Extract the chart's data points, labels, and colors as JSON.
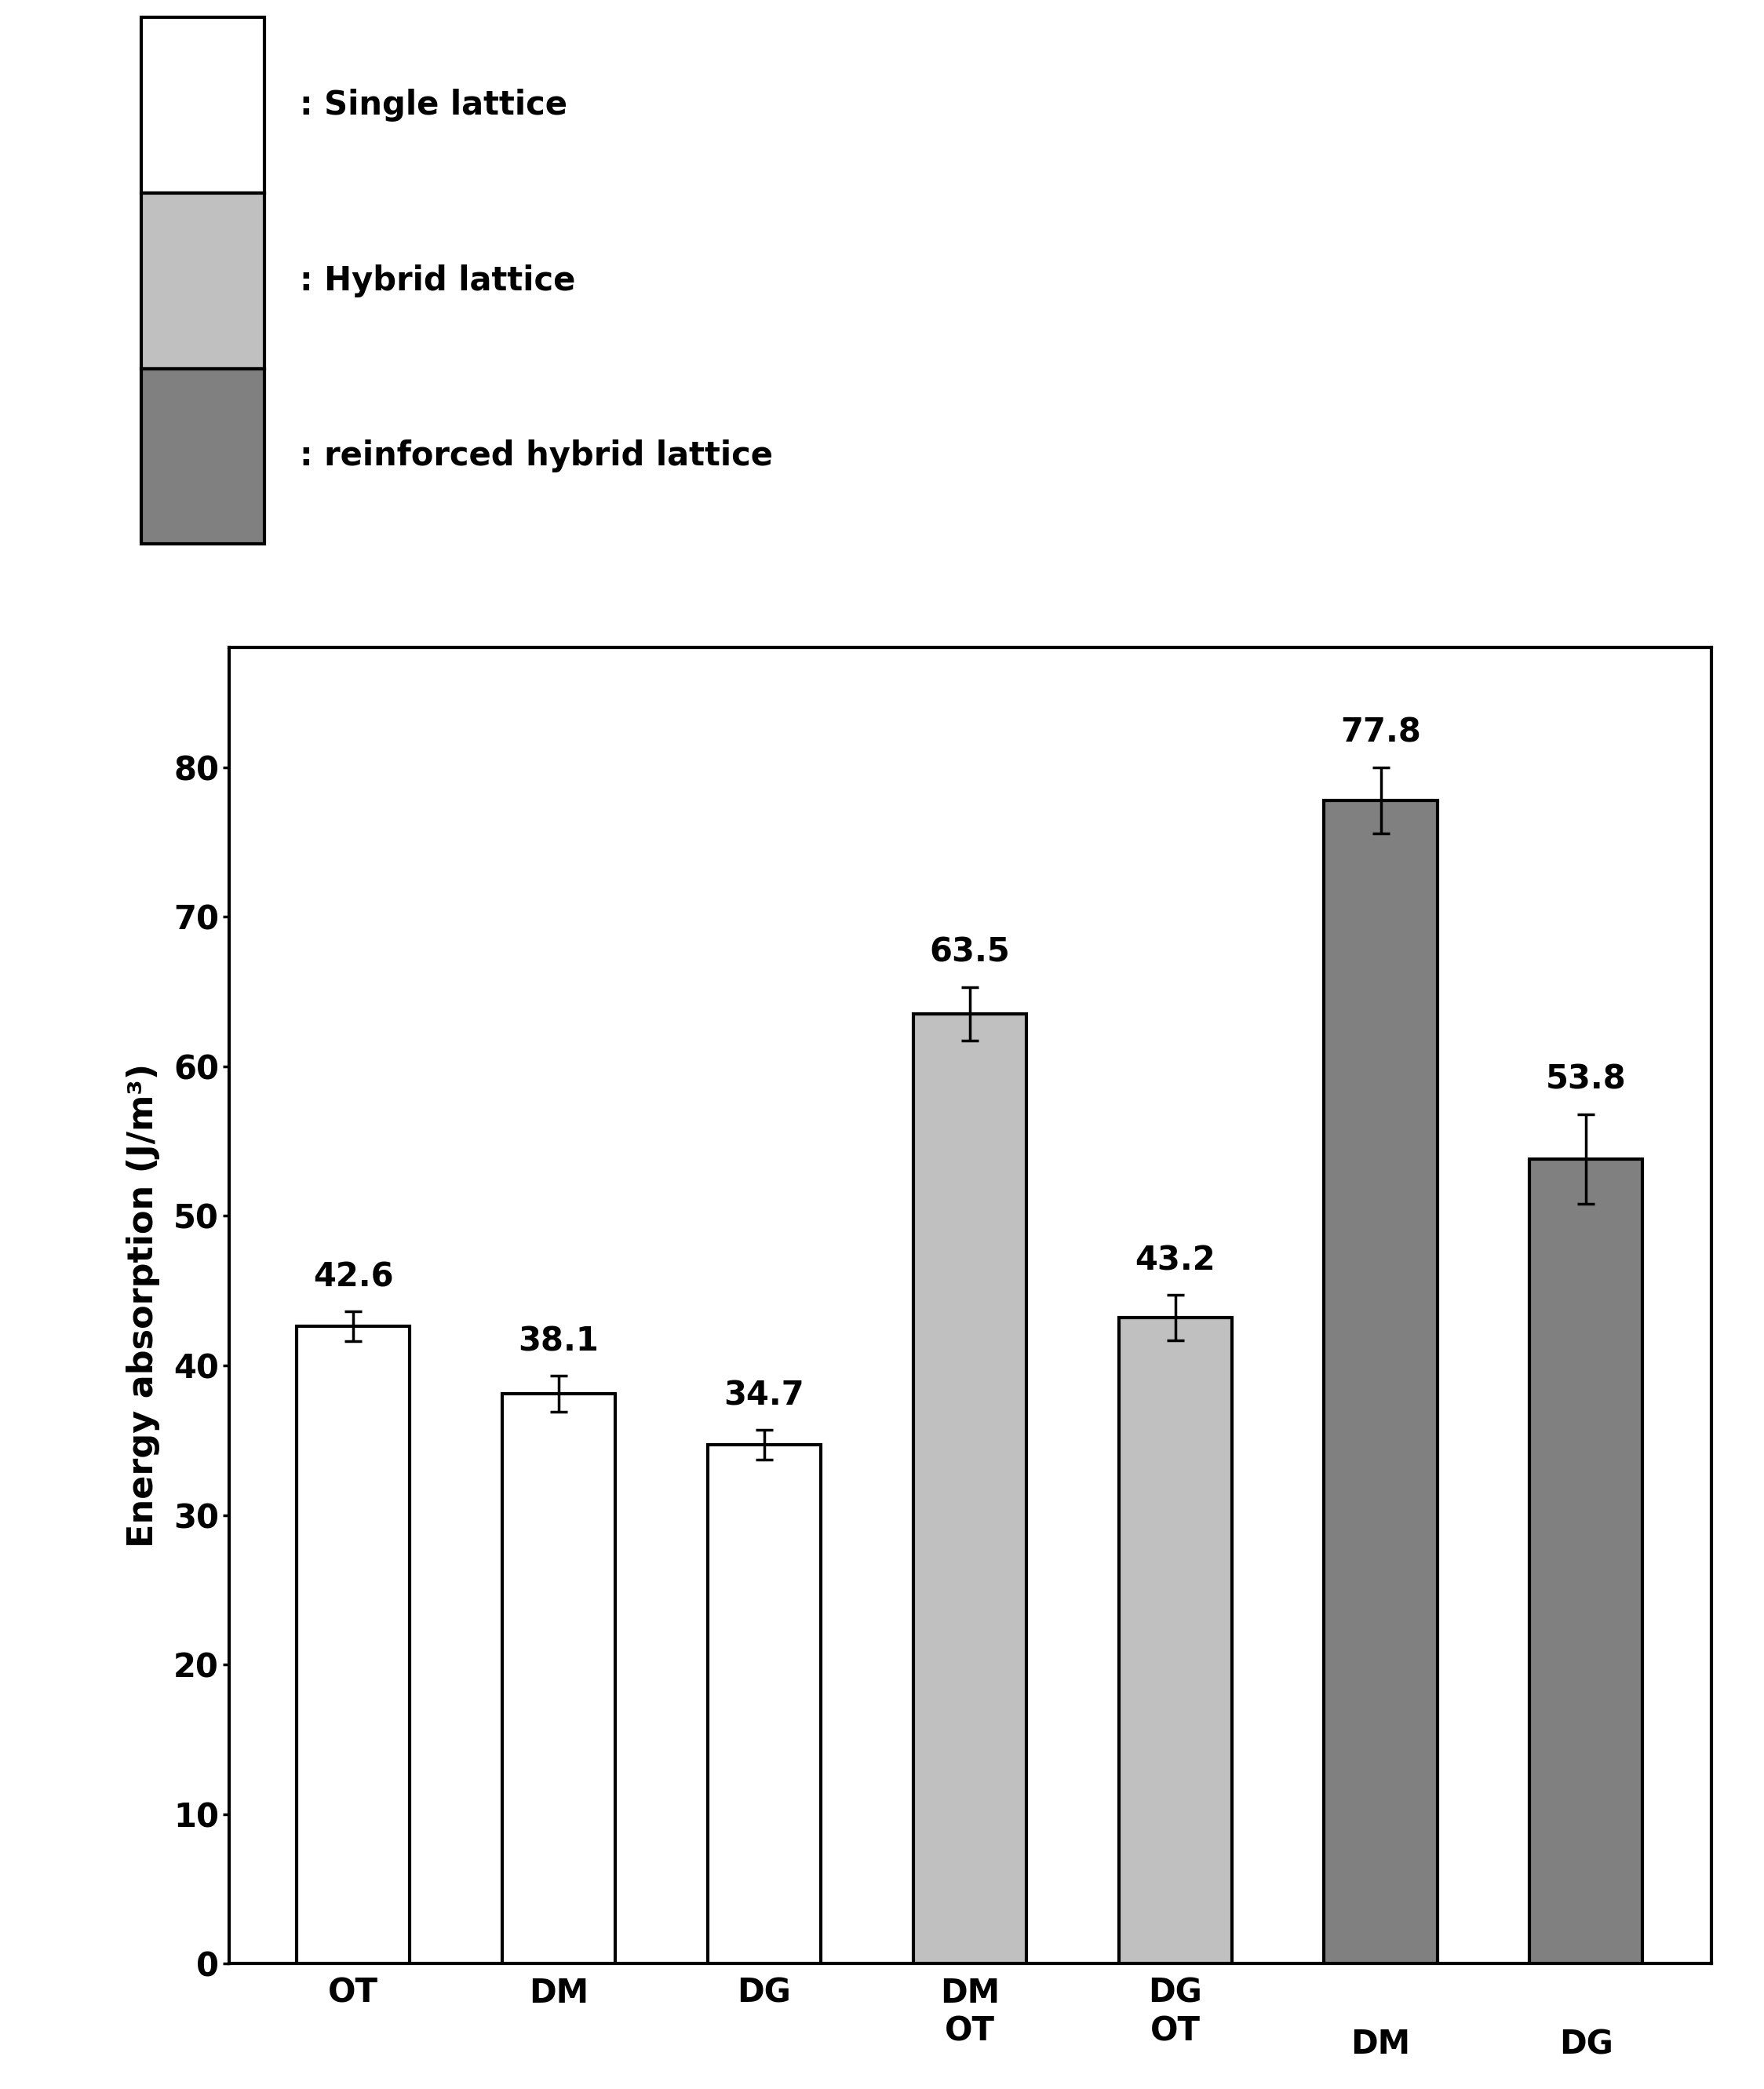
{
  "values": [
    42.6,
    38.1,
    34.7,
    63.5,
    43.2,
    77.8,
    53.8
  ],
  "errors": [
    1.0,
    1.2,
    1.0,
    1.8,
    1.5,
    2.2,
    3.0
  ],
  "bar_colors": [
    "#ffffff",
    "#ffffff",
    "#ffffff",
    "#c0c0c0",
    "#c0c0c0",
    "#808080",
    "#808080"
  ],
  "bar_edgecolor": "#000000",
  "bar_linewidth": 3.0,
  "error_capsize": 8,
  "error_color": "#000000",
  "error_linewidth": 2.5,
  "ylabel": "Energy absorption (J/m³)",
  "ylim": [
    0,
    88
  ],
  "yticks": [
    0,
    10,
    20,
    30,
    40,
    50,
    60,
    70,
    80
  ],
  "value_labels": [
    "42.6",
    "38.1",
    "34.7",
    "63.5",
    "43.2",
    "77.8",
    "53.8"
  ],
  "legend_labels": [
    ": Single lattice",
    ": Hybrid lattice",
    ": reinforced hybrid lattice"
  ],
  "legend_colors": [
    "#ffffff",
    "#c0c0c0",
    "#808080"
  ],
  "legend_edgecolor": "#000000",
  "bar_width": 0.55,
  "tick_fontsize": 30,
  "value_fontsize": 30,
  "ylabel_fontsize": 32,
  "legend_fontsize": 30,
  "background_color": "#ffffff",
  "spine_linewidth": 3.0
}
